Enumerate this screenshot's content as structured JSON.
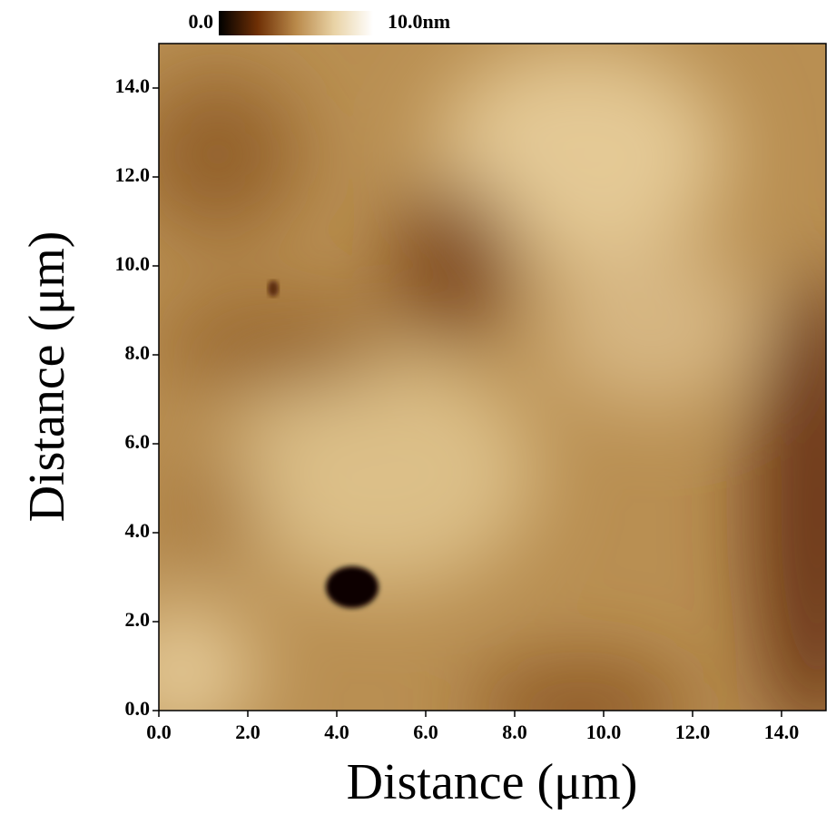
{
  "chart_data": {
    "type": "image",
    "xlabel": "Distance  (μm)",
    "ylabel": "Distance  (μm)",
    "xlim": [
      0,
      15
    ],
    "ylim": [
      0,
      15
    ],
    "xticks": [
      {
        "value": 0,
        "label": "0.0"
      },
      {
        "value": 2,
        "label": "2.0"
      },
      {
        "value": 4,
        "label": "4.0"
      },
      {
        "value": 6,
        "label": "6.0"
      },
      {
        "value": 8,
        "label": "8.0"
      },
      {
        "value": 10,
        "label": "10.0"
      },
      {
        "value": 12,
        "label": "12.0"
      },
      {
        "value": 14,
        "label": "14.0"
      }
    ],
    "yticks": [
      {
        "value": 0,
        "label": "0.0"
      },
      {
        "value": 2,
        "label": "2.0"
      },
      {
        "value": 4,
        "label": "4.0"
      },
      {
        "value": 6,
        "label": "6.0"
      },
      {
        "value": 8,
        "label": "8.0"
      },
      {
        "value": 10,
        "label": "10.0"
      },
      {
        "value": 12,
        "label": "12.0"
      },
      {
        "value": 14,
        "label": "14.0"
      }
    ],
    "colorbar": {
      "lim": [
        0,
        10
      ],
      "ticks": [
        {
          "value": 0,
          "label": "0.0"
        },
        {
          "value": 10,
          "label": "10.0nm"
        }
      ],
      "colormap": [
        "#000000",
        "#6e2f05",
        "#b9894a",
        "#e9d3a6",
        "#ffffff"
      ]
    }
  }
}
